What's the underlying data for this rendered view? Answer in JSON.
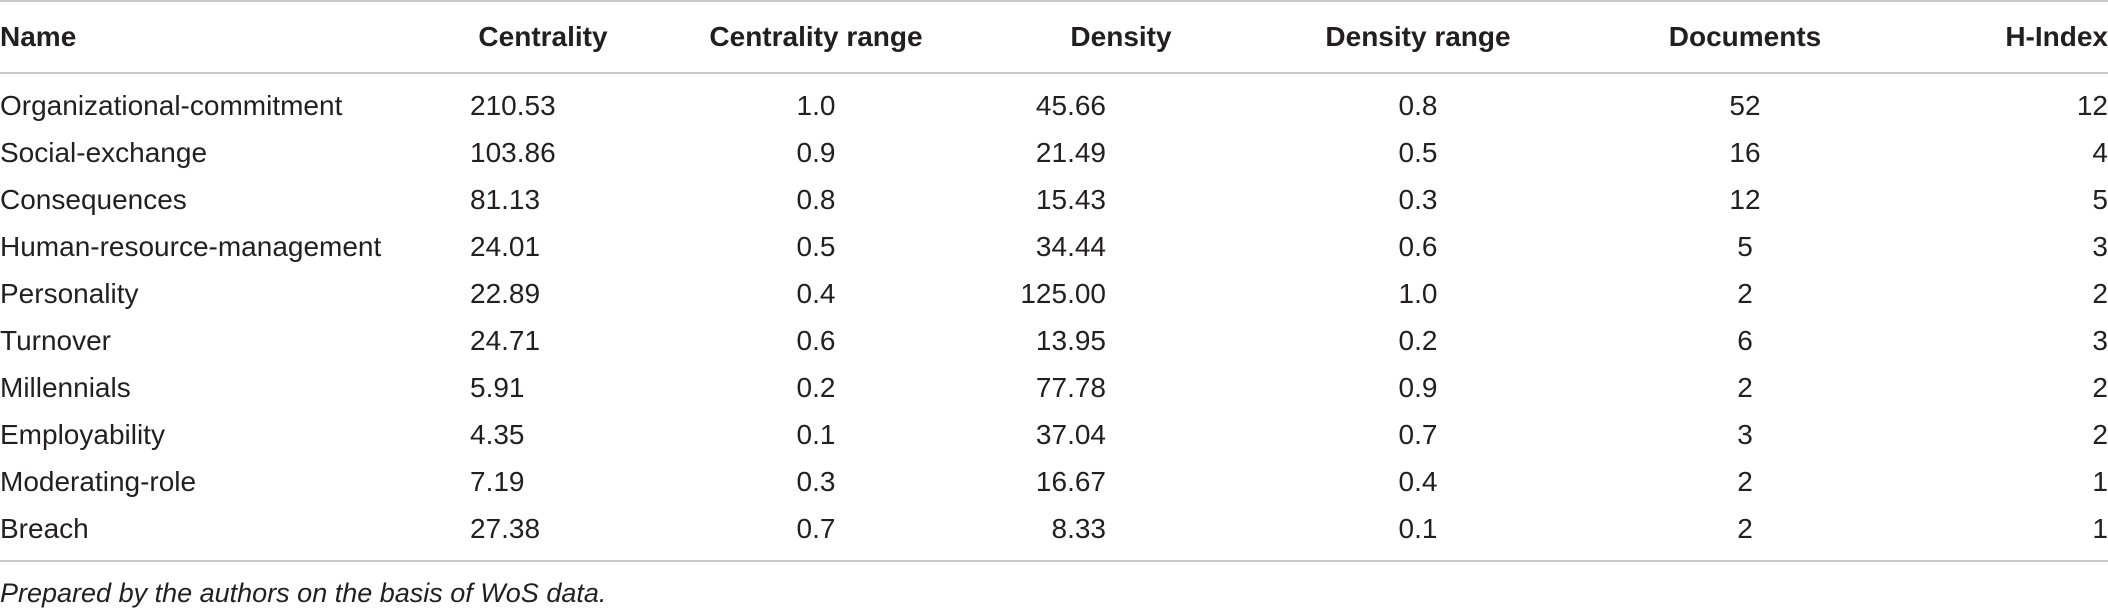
{
  "table": {
    "headers": [
      "Name",
      "Centrality",
      "Centrality range",
      "Density",
      "Density range",
      "Documents",
      "H-Index"
    ],
    "rows": [
      [
        "Organizational-commitment",
        "210.53",
        "1.0",
        "45.66",
        "0.8",
        "52",
        "12"
      ],
      [
        "Social-exchange",
        "103.86",
        "0.9",
        "21.49",
        "0.5",
        "16",
        "4"
      ],
      [
        "Consequences",
        "81.13",
        "0.8",
        "15.43",
        "0.3",
        "12",
        "5"
      ],
      [
        "Human-resource-management",
        "24.01",
        "0.5",
        "34.44",
        "0.6",
        "5",
        "3"
      ],
      [
        "Personality",
        "22.89",
        "0.4",
        "125.00",
        "1.0",
        "2",
        "2"
      ],
      [
        "Turnover",
        "24.71",
        "0.6",
        "13.95",
        "0.2",
        "6",
        "3"
      ],
      [
        "Millennials",
        "5.91",
        "0.2",
        "77.78",
        "0.9",
        "2",
        "2"
      ],
      [
        "Employability",
        "4.35",
        "0.1",
        "37.04",
        "0.7",
        "3",
        "2"
      ],
      [
        "Moderating-role",
        "7.19",
        "0.3",
        "16.67",
        "0.4",
        "2",
        "1"
      ],
      [
        "Breach",
        "27.38",
        "0.7",
        "8.33",
        "0.1",
        "2",
        "1"
      ]
    ]
  },
  "footnote": "Prepared by the authors on the basis of WoS data."
}
